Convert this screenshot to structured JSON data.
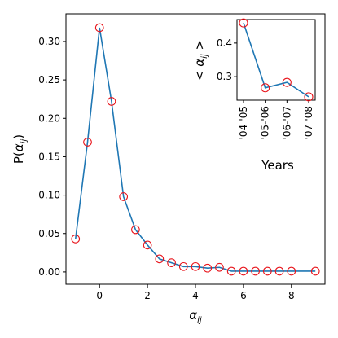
{
  "chart_data": [
    {
      "type": "line",
      "xlabel": "α_ij",
      "ylabel": "P(α_ij)",
      "xlim": [
        -1.4,
        9.4
      ],
      "ylim": [
        -0.016,
        0.336
      ],
      "xticks": [
        0,
        2,
        4,
        6,
        8
      ],
      "xtick_labels": [
        "0",
        "2",
        "4",
        "6",
        "8"
      ],
      "yticks": [
        0.0,
        0.05,
        0.1,
        0.15,
        0.2,
        0.25,
        0.3
      ],
      "ytick_labels": [
        "0.00",
        "0.05",
        "0.10",
        "0.15",
        "0.20",
        "0.25",
        "0.30"
      ],
      "x": [
        -1,
        -0.5,
        0,
        0.5,
        1,
        1.5,
        2,
        2.5,
        3,
        3.5,
        4,
        4.5,
        5,
        5.5,
        6,
        6.5,
        7,
        7.5,
        8,
        9
      ],
      "series": [
        {
          "values": [
            0.043,
            0.169,
            0.318,
            0.222,
            0.098,
            0.055,
            0.035,
            0.017,
            0.012,
            0.007,
            0.007,
            0.005,
            0.006,
            0.001,
            0.001,
            0.001,
            0.001,
            0.001,
            0.001,
            0.001
          ],
          "line_color": "#1f77b4",
          "marker": "open-circle",
          "marker_color": "#e8141b"
        }
      ],
      "grid": false
    },
    {
      "type": "line",
      "xlabel": "Years",
      "ylabel": "< α_ij >",
      "categories": [
        "'04-'05",
        "'05-'06",
        "'06-'07",
        "'07-'08"
      ],
      "ylim": [
        0.23,
        0.47
      ],
      "yticks": [
        0.3,
        0.4
      ],
      "ytick_labels": [
        "0.3",
        "0.4"
      ],
      "series": [
        {
          "values": [
            0.46,
            0.267,
            0.283,
            0.24
          ],
          "line_color": "#1f77b4",
          "marker": "open-circle",
          "marker_color": "#e8141b"
        }
      ],
      "grid": false
    }
  ]
}
